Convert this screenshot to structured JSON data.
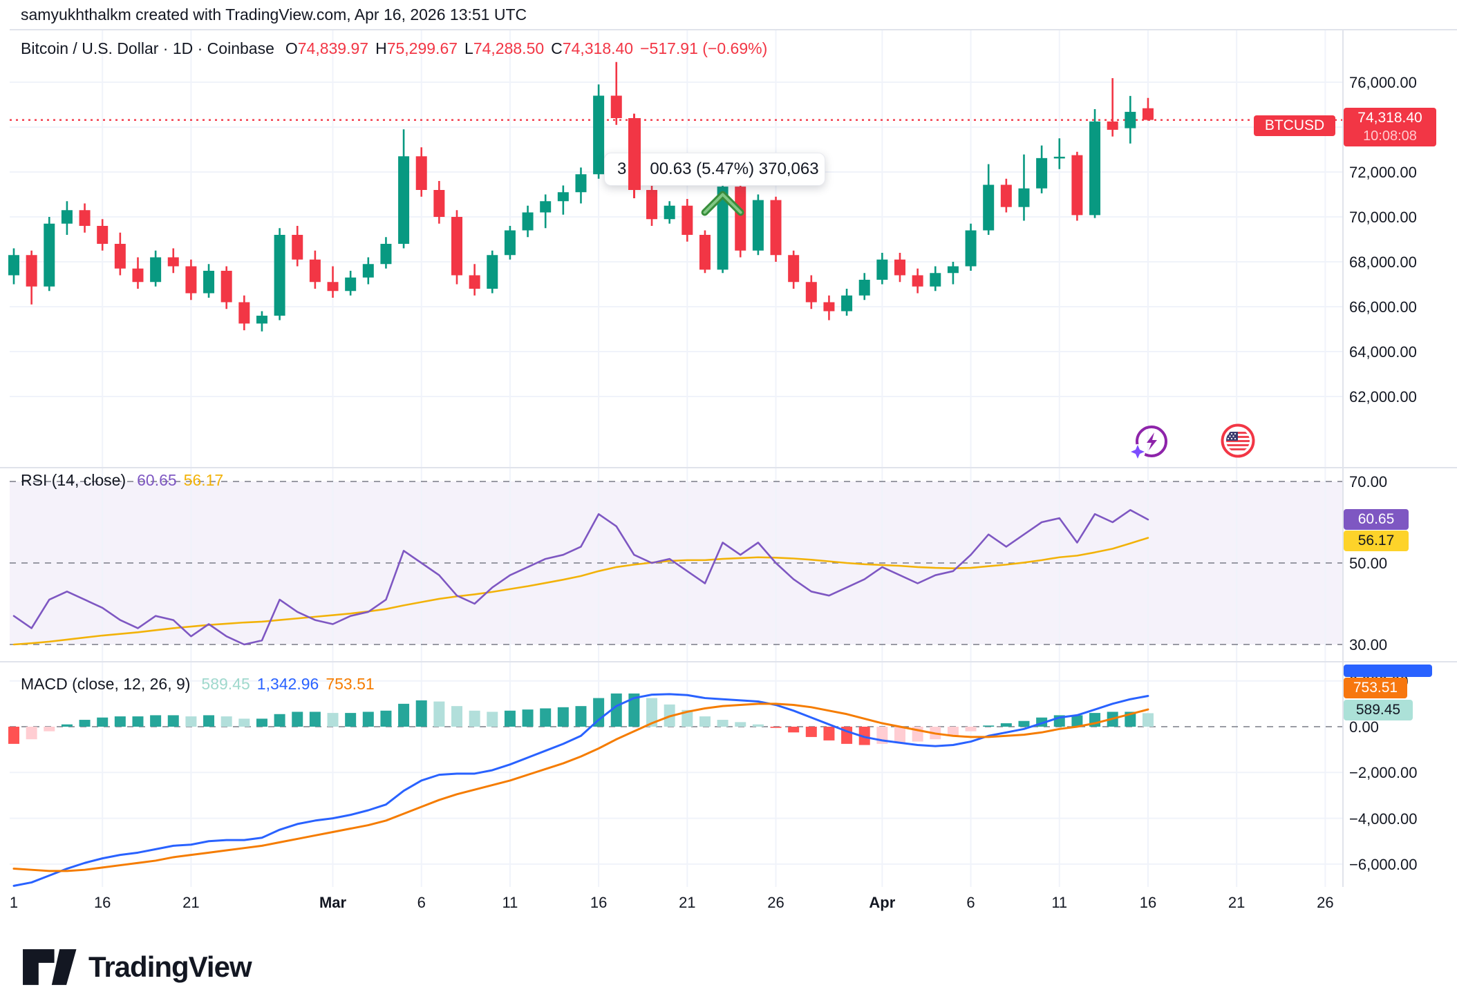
{
  "header": {
    "creator_line": "samyukhthalkm created with TradingView.com, Apr 16, 2026 13:51 UTC"
  },
  "legend": {
    "title": "Bitcoin / U.S. Dollar · 1D · Coinbase",
    "open_label": "O",
    "open": "74,839.97",
    "high_label": "H",
    "high": "75,299.67",
    "low_label": "L",
    "low": "74,288.50",
    "close_label": "C",
    "close": "74,318.40",
    "change": "−517.91 (−0.69%)"
  },
  "tooltip": {
    "part1": "3",
    "part2": "00.63 (5.47%) 370,063"
  },
  "price_scale": {
    "labels": [
      {
        "text": "76,000.00",
        "value": 76000
      },
      {
        "text": "72,000.00",
        "value": 72000
      },
      {
        "text": "70,000.00",
        "value": 70000
      },
      {
        "text": "68,000.00",
        "value": 68000
      },
      {
        "text": "66,000.00",
        "value": 66000
      },
      {
        "text": "64,000.00",
        "value": 64000
      },
      {
        "text": "62,000.00",
        "value": 62000
      }
    ],
    "gridline_values": [
      76000,
      74000,
      72000,
      70000,
      68000,
      66000,
      64000,
      62000
    ],
    "symbol_badge": "BTCUSD",
    "price_badge": {
      "price": "74,318.40",
      "countdown": "10:08:08"
    }
  },
  "rsi": {
    "legend": "RSI (14, close)",
    "value": "60.65",
    "ma_value": "56.17",
    "axis": [
      {
        "text": "70.00",
        "value": 70
      },
      {
        "text": "50.00",
        "value": 50
      },
      {
        "text": "30.00",
        "value": 30
      }
    ]
  },
  "macd": {
    "legend": "MACD (close, 12, 26, 9)",
    "hist_value": "589.45",
    "macd_value": "1,342.96",
    "signal_value": "753.51",
    "axis": [
      {
        "text": "2,000.00",
        "value": 2000
      },
      {
        "text": "0.00",
        "value": 0
      },
      {
        "text": "−2,000.00",
        "value": -2000
      },
      {
        "text": "−4,000.00",
        "value": -4000
      },
      {
        "text": "−6,000.00",
        "value": -6000
      }
    ]
  },
  "time_axis": {
    "labels": [
      {
        "text": "1",
        "index": 0,
        "bold": false
      },
      {
        "text": "16",
        "index": 5,
        "bold": false
      },
      {
        "text": "21",
        "index": 10,
        "bold": false
      },
      {
        "text": "Mar",
        "index": 18,
        "bold": true
      },
      {
        "text": "6",
        "index": 23,
        "bold": false
      },
      {
        "text": "11",
        "index": 28,
        "bold": false
      },
      {
        "text": "16",
        "index": 33,
        "bold": false
      },
      {
        "text": "21",
        "index": 38,
        "bold": false
      },
      {
        "text": "26",
        "index": 43,
        "bold": false
      },
      {
        "text": "Apr",
        "index": 49,
        "bold": true
      },
      {
        "text": "6",
        "index": 54,
        "bold": false
      },
      {
        "text": "11",
        "index": 59,
        "bold": false
      },
      {
        "text": "16",
        "index": 64,
        "bold": false
      },
      {
        "text": "21",
        "index": 69,
        "bold": false
      },
      {
        "text": "26",
        "index": 74,
        "bold": false
      }
    ]
  },
  "footer": {
    "brand": "TradingView"
  },
  "icons": {
    "ai_button": "flash-circle-icon",
    "flag": "us-flag-icon"
  },
  "colors": {
    "up": "#089981",
    "down": "#F23645",
    "grid": "#F0F3FA",
    "dashed": "#787B86",
    "rsi_purple": "#7E57C2",
    "rsi_yellow": "#F2B208",
    "rsi_band": "rgba(126,87,194,0.08)",
    "macd_blue": "#2962FF",
    "macd_orange": "#F57C00",
    "hist_up": "#26A69A",
    "hist_up_light": "#B2DFDB",
    "hist_dn": "#FF5252",
    "hist_dn_light": "#FFCDD2",
    "marker_green": "#388E3C",
    "marker_green_light": "#81C784"
  },
  "chart_data": [
    {
      "type": "candlestick",
      "title": "Bitcoin / U.S. Dollar",
      "symbol": "BTCUSD",
      "timeframe": "1D",
      "exchange": "Coinbase",
      "ylim": [
        62000,
        76000
      ],
      "last_price": 74318.4,
      "last_ohlc": {
        "open": 74839.97,
        "high": 75299.67,
        "low": 74288.5,
        "close": 74318.4,
        "change": -517.91,
        "change_pct": -0.69
      },
      "marker": {
        "index": 40,
        "type": "chevron-up",
        "tooltip_change": "+3,x00.63",
        "tooltip_pct": "5.47%",
        "tooltip_volume": "370,063"
      },
      "dates": [
        "Feb 11",
        "Feb 12",
        "Feb 13",
        "Feb 14",
        "Feb 15",
        "Feb 16",
        "Feb 17",
        "Feb 18",
        "Feb 19",
        "Feb 20",
        "Feb 21",
        "Feb 22",
        "Feb 23",
        "Feb 24",
        "Feb 25",
        "Feb 26",
        "Feb 27",
        "Feb 28",
        "Mar 1",
        "Mar 2",
        "Mar 3",
        "Mar 4",
        "Mar 5",
        "Mar 6",
        "Mar 7",
        "Mar 8",
        "Mar 9",
        "Mar 10",
        "Mar 11",
        "Mar 12",
        "Mar 13",
        "Mar 14",
        "Mar 15",
        "Mar 16",
        "Mar 17",
        "Mar 18",
        "Mar 19",
        "Mar 20",
        "Mar 21",
        "Mar 22",
        "Mar 23",
        "Mar 24",
        "Mar 25",
        "Mar 26",
        "Mar 27",
        "Mar 28",
        "Mar 29",
        "Mar 30",
        "Mar 31",
        "Apr 1",
        "Apr 2",
        "Apr 3",
        "Apr 4",
        "Apr 5",
        "Apr 6",
        "Apr 7",
        "Apr 8",
        "Apr 9",
        "Apr 10",
        "Apr 11",
        "Apr 12",
        "Apr 13",
        "Apr 14",
        "Apr 15",
        "Apr 16"
      ],
      "candles": [
        [
          67400,
          68600,
          67000,
          68300
        ],
        [
          68300,
          68500,
          66100,
          66900
        ],
        [
          66900,
          70000,
          66700,
          69700
        ],
        [
          69700,
          70700,
          69200,
          70300
        ],
        [
          70300,
          70600,
          69300,
          69600
        ],
        [
          69600,
          69900,
          68500,
          68800
        ],
        [
          68800,
          69300,
          67400,
          67700
        ],
        [
          67700,
          68200,
          66800,
          67100
        ],
        [
          67100,
          68500,
          66900,
          68200
        ],
        [
          68200,
          68600,
          67500,
          67800
        ],
        [
          67800,
          68100,
          66300,
          66600
        ],
        [
          66600,
          67900,
          66400,
          67600
        ],
        [
          67600,
          67800,
          65900,
          66200
        ],
        [
          66200,
          66500,
          64950,
          65250
        ],
        [
          65250,
          65800,
          64900,
          65600
        ],
        [
          65600,
          69500,
          65400,
          69200
        ],
        [
          69200,
          69600,
          67800,
          68100
        ],
        [
          68100,
          68500,
          66800,
          67100
        ],
        [
          67100,
          67800,
          66400,
          66700
        ],
        [
          66700,
          67600,
          66500,
          67300
        ],
        [
          67300,
          68200,
          67000,
          67900
        ],
        [
          67900,
          69100,
          67700,
          68800
        ],
        [
          68800,
          73900,
          68600,
          72700
        ],
        [
          72700,
          73100,
          70900,
          71200
        ],
        [
          71200,
          71600,
          69700,
          70000
        ],
        [
          70000,
          70300,
          67000,
          67400
        ],
        [
          67400,
          67900,
          66500,
          66800
        ],
        [
          66800,
          68500,
          66600,
          68300
        ],
        [
          68300,
          69600,
          68100,
          69400
        ],
        [
          69400,
          70500,
          69100,
          70200
        ],
        [
          70200,
          71000,
          69500,
          70700
        ],
        [
          70700,
          71400,
          70100,
          71100
        ],
        [
          71100,
          72200,
          70600,
          71900
        ],
        [
          71900,
          75900,
          71700,
          75400
        ],
        [
          75400,
          76900,
          74100,
          74400
        ],
        [
          74400,
          74600,
          70900,
          71200
        ],
        [
          71200,
          71400,
          69600,
          69900
        ],
        [
          69900,
          70700,
          69700,
          70500
        ],
        [
          70500,
          70800,
          68900,
          69200
        ],
        [
          69200,
          69400,
          67500,
          67650
        ],
        [
          67650,
          71800,
          67500,
          71350
        ],
        [
          71350,
          71500,
          68200,
          68500
        ],
        [
          68500,
          71000,
          68300,
          70750
        ],
        [
          70750,
          70900,
          68000,
          68300
        ],
        [
          68300,
          68500,
          66800,
          67100
        ],
        [
          67100,
          67400,
          65900,
          66200
        ],
        [
          66200,
          66500,
          65400,
          65800
        ],
        [
          65800,
          66800,
          65600,
          66500
        ],
        [
          66500,
          67500,
          66300,
          67200
        ],
        [
          67200,
          68400,
          67000,
          68100
        ],
        [
          68100,
          68400,
          67100,
          67400
        ],
        [
          67400,
          67700,
          66600,
          66900
        ],
        [
          66900,
          67800,
          66700,
          67500
        ],
        [
          67500,
          68000,
          67000,
          67800
        ],
        [
          67800,
          69700,
          67600,
          69400
        ],
        [
          69400,
          72350,
          69200,
          71430
        ],
        [
          71430,
          71700,
          70200,
          70440
        ],
        [
          70440,
          72780,
          69830,
          71270
        ],
        [
          71270,
          73180,
          71050,
          72620
        ],
        [
          72620,
          73500,
          72130,
          72680
        ],
        [
          72750,
          72900,
          69830,
          70080
        ],
        [
          70080,
          74800,
          69950,
          74250
        ],
        [
          74250,
          76180,
          73580,
          73880
        ],
        [
          73950,
          75390,
          73270,
          74680
        ],
        [
          74839.97,
          75299.67,
          74288.5,
          74318.4
        ]
      ]
    },
    {
      "type": "line",
      "title": "RSI (14, close)",
      "levels": [
        70,
        50,
        30
      ],
      "ylim": [
        25,
        75
      ],
      "series": [
        {
          "name": "RSI",
          "color": "#7E57C2",
          "last": 60.65,
          "values": [
            37,
            34,
            41,
            43,
            41,
            39,
            36,
            34,
            37,
            36,
            32,
            35,
            32,
            30,
            31,
            41,
            38,
            36,
            35,
            37,
            38,
            41,
            53,
            50,
            47,
            42,
            40,
            44,
            47,
            49,
            51,
            52,
            54,
            62,
            59,
            52,
            50,
            51,
            48,
            45,
            55,
            52,
            55,
            50,
            46,
            43,
            42,
            44,
            46,
            49,
            47,
            45,
            47,
            48,
            52,
            57,
            54,
            57,
            60,
            61,
            55,
            62,
            60,
            63,
            60.65
          ]
        },
        {
          "name": "RSI-based MA",
          "color": "#F2B208",
          "last": 56.17,
          "values": [
            30,
            30.3,
            30.7,
            31.2,
            31.7,
            32.2,
            32.6,
            33,
            33.5,
            34,
            34.4,
            34.8,
            35.1,
            35.4,
            35.6,
            36,
            36.4,
            36.8,
            37.2,
            37.6,
            38.1,
            38.7,
            39.6,
            40.4,
            41.2,
            41.8,
            42.3,
            42.9,
            43.6,
            44.3,
            45.1,
            45.9,
            46.8,
            48,
            49,
            49.6,
            50.1,
            50.5,
            50.7,
            50.7,
            51,
            51.2,
            51.4,
            51.3,
            51.1,
            50.8,
            50.4,
            50,
            49.7,
            49.5,
            49.3,
            49,
            48.8,
            48.7,
            48.8,
            49.2,
            49.6,
            50.1,
            50.7,
            51.4,
            51.8,
            52.6,
            53.5,
            54.8,
            56.17
          ]
        }
      ]
    },
    {
      "type": "macd",
      "title": "MACD (close, 12, 26, 9)",
      "ylim": [
        -7000,
        2000
      ],
      "histogram_rule": "macd_minus_signal",
      "series": [
        {
          "name": "MACD",
          "color": "#2962FF",
          "last": 1342.96,
          "values": [
            -6950,
            -6800,
            -6500,
            -6200,
            -5950,
            -5750,
            -5600,
            -5500,
            -5350,
            -5200,
            -5150,
            -5000,
            -4950,
            -4950,
            -4850,
            -4500,
            -4250,
            -4100,
            -4000,
            -3850,
            -3650,
            -3400,
            -2800,
            -2350,
            -2100,
            -2050,
            -2050,
            -1900,
            -1650,
            -1350,
            -1050,
            -750,
            -400,
            300,
            900,
            1250,
            1400,
            1420,
            1380,
            1250,
            1200,
            1150,
            1100,
            950,
            700,
            400,
            100,
            -200,
            -450,
            -600,
            -700,
            -800,
            -850,
            -800,
            -650,
            -400,
            -250,
            -100,
            150,
            400,
            500,
            750,
            1000,
            1200,
            1342.96
          ]
        },
        {
          "name": "Signal",
          "color": "#F57C00",
          "last": 753.51,
          "values": [
            -6200,
            -6250,
            -6300,
            -6300,
            -6250,
            -6150,
            -6050,
            -5950,
            -5850,
            -5700,
            -5600,
            -5500,
            -5400,
            -5300,
            -5200,
            -5050,
            -4900,
            -4750,
            -4600,
            -4450,
            -4300,
            -4100,
            -3800,
            -3500,
            -3200,
            -2950,
            -2750,
            -2550,
            -2350,
            -2100,
            -1850,
            -1600,
            -1300,
            -950,
            -550,
            -200,
            150,
            450,
            650,
            800,
            900,
            950,
            1000,
            1000,
            950,
            850,
            700,
            550,
            350,
            150,
            0,
            -150,
            -300,
            -400,
            -450,
            -450,
            -400,
            -350,
            -250,
            -100,
            0,
            150,
            350,
            550,
            753.51
          ]
        },
        {
          "name": "Histogram",
          "last": 589.45
        }
      ]
    }
  ]
}
